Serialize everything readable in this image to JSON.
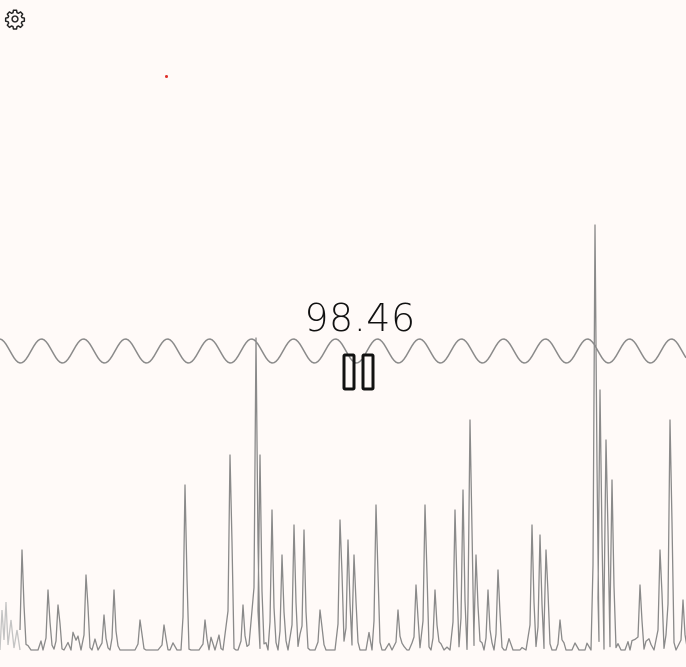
{
  "display": {
    "reading": "98.46"
  },
  "icons": {
    "settings": "gear-icon",
    "pause": "pause-icon"
  },
  "colors": {
    "background": "#fffaf8",
    "trace": "#8a8a8a",
    "indicator": "#e0302a",
    "text": "#111111"
  }
}
